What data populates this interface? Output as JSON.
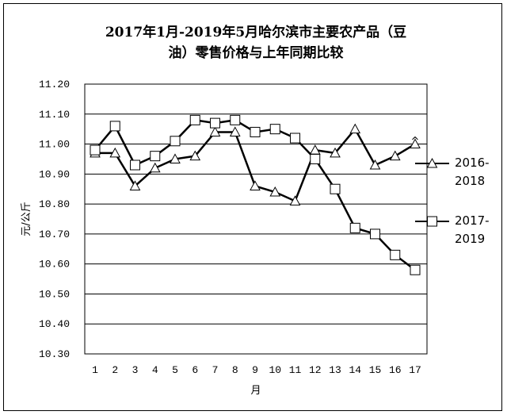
{
  "chart_data": {
    "type": "line",
    "title_lines": [
      "2017年1月-2019年5月哈尔滨市主要农产品（豆",
      "油）零售价格与上年同期比较"
    ],
    "xlabel": "月",
    "ylabel": "元/公斤",
    "x": [
      1,
      2,
      3,
      4,
      5,
      6,
      7,
      8,
      9,
      10,
      11,
      12,
      13,
      14,
      15,
      16,
      17
    ],
    "ylim": [
      10.3,
      11.2
    ],
    "yticks": [
      "10.30",
      "10.40",
      "10.50",
      "10.60",
      "10.70",
      "10.80",
      "10.90",
      "11.00",
      "11.10",
      "11.20"
    ],
    "grid": true,
    "legend_position": "right",
    "series": [
      {
        "name": "2016-2018",
        "name_lines": [
          "2016-",
          "2018"
        ],
        "marker": "triangle",
        "values": [
          10.97,
          10.97,
          10.86,
          10.92,
          10.95,
          10.96,
          11.04,
          11.04,
          10.86,
          10.84,
          10.81,
          10.98,
          10.97,
          11.05,
          10.93,
          10.96,
          11.0
        ]
      },
      {
        "name": "2017-2019",
        "name_lines": [
          "2017-",
          "2019"
        ],
        "marker": "square",
        "values": [
          10.98,
          11.06,
          10.93,
          10.96,
          11.01,
          11.08,
          11.07,
          11.08,
          11.04,
          11.05,
          11.02,
          10.95,
          10.85,
          10.72,
          10.7,
          10.63,
          10.58
        ]
      }
    ],
    "annotation": "^"
  }
}
